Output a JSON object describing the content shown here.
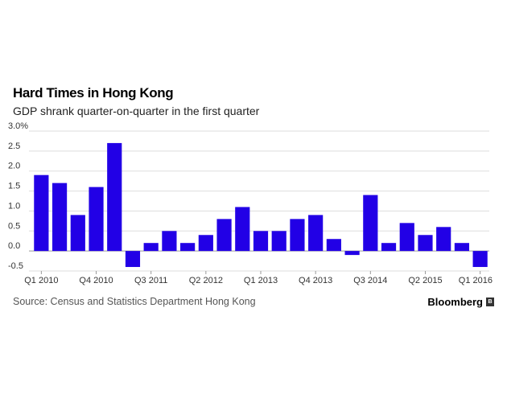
{
  "chart_data": {
    "type": "bar",
    "title": "Hard Times in Hong Kong",
    "subtitle": "GDP shrank quarter-on-quarter in the first quarter",
    "xlabel": "",
    "ylabel": "",
    "ylim": [
      -0.5,
      3.0
    ],
    "yticks": [
      "3.0%",
      "2.5",
      "2.0",
      "1.5",
      "1.0",
      "0.5",
      "0.0",
      "-0.5"
    ],
    "ytick_values": [
      3.0,
      2.5,
      2.0,
      1.5,
      1.0,
      0.5,
      0.0,
      -0.5
    ],
    "grid": true,
    "bar_color": "#2200e6",
    "categories": [
      "Q1 2010",
      "Q2 2010",
      "Q3 2010",
      "Q4 2010",
      "Q1 2011",
      "Q2 2011",
      "Q3 2011",
      "Q4 2011",
      "Q1 2012",
      "Q2 2012",
      "Q3 2012",
      "Q4 2012",
      "Q1 2013",
      "Q2 2013",
      "Q3 2013",
      "Q4 2013",
      "Q1 2014",
      "Q2 2014",
      "Q3 2014",
      "Q4 2014",
      "Q1 2015",
      "Q2 2015",
      "Q3 2015",
      "Q4 2015",
      "Q1 2016"
    ],
    "values": [
      1.9,
      1.7,
      0.9,
      1.6,
      2.7,
      -0.4,
      0.2,
      0.5,
      0.2,
      0.4,
      0.8,
      1.1,
      0.5,
      0.5,
      0.8,
      0.9,
      0.3,
      -0.1,
      1.4,
      0.2,
      0.7,
      0.4,
      0.6,
      0.2,
      -0.4
    ],
    "xtick_labels": [
      {
        "index": 0,
        "label": "Q1 2010"
      },
      {
        "index": 3,
        "label": "Q4 2010"
      },
      {
        "index": 6,
        "label": "Q3 2011"
      },
      {
        "index": 9,
        "label": "Q2 2012"
      },
      {
        "index": 12,
        "label": "Q1 2013"
      },
      {
        "index": 15,
        "label": "Q4 2013"
      },
      {
        "index": 18,
        "label": "Q3 2014"
      },
      {
        "index": 21,
        "label": "Q2 2015"
      },
      {
        "index": 24,
        "label": "Q1 2016"
      }
    ]
  },
  "footer": {
    "source": "Source: Census and Statistics Department Hong Kong",
    "brand": "Bloomberg",
    "brand_icon_glyph": "B"
  }
}
